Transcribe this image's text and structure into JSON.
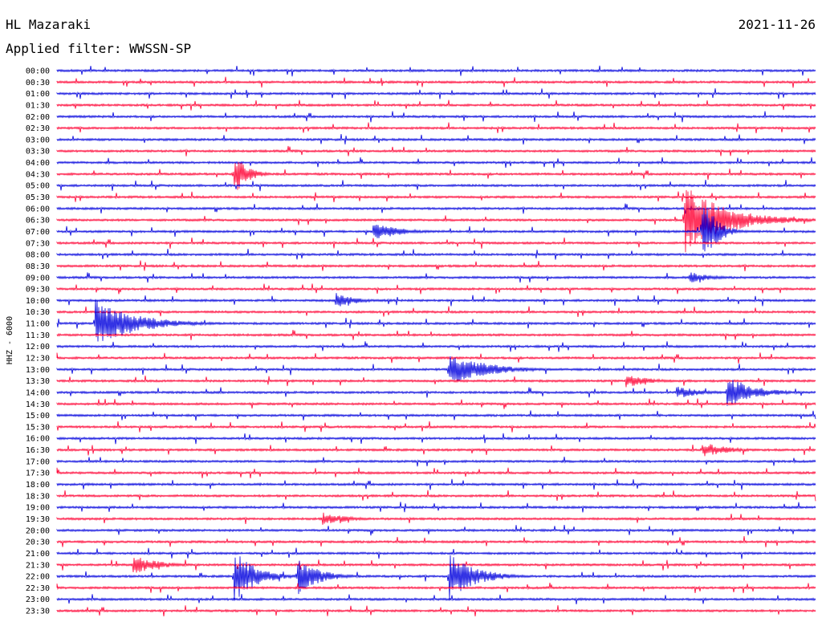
{
  "header": {
    "station": "HL Mazaraki",
    "date": "2021-11-26",
    "filter_label": "Applied filter: WWSSN-SP"
  },
  "chart_data": {
    "type": "helicorder",
    "channel_label": "HHZ - 6000",
    "colors": {
      "even_rows": "#0000dd",
      "odd_rows": "#ff0033"
    },
    "row_times": [
      "00:00",
      "00:30",
      "01:00",
      "01:30",
      "02:00",
      "02:30",
      "03:00",
      "03:30",
      "04:00",
      "04:30",
      "05:00",
      "05:30",
      "06:00",
      "06:30",
      "07:00",
      "07:30",
      "08:00",
      "08:30",
      "09:00",
      "09:30",
      "10:00",
      "10:30",
      "11:00",
      "11:30",
      "12:00",
      "12:30",
      "13:00",
      "13:30",
      "14:00",
      "14:30",
      "15:00",
      "15:30",
      "16:00",
      "16:30",
      "17:00",
      "17:30",
      "18:00",
      "18:30",
      "19:00",
      "19:30",
      "20:00",
      "20:30",
      "21:00",
      "21:30",
      "22:00",
      "22:30",
      "23:00",
      "23:30"
    ],
    "row_window_minutes": 30,
    "events": [
      {
        "row": 22,
        "minute": 1.5,
        "amp": 32,
        "dur": 1.5
      },
      {
        "row": 26,
        "minute": 15.5,
        "amp": 20,
        "dur": 1.5
      },
      {
        "row": 27,
        "minute": 22.5,
        "amp": 8,
        "dur": 1.0
      },
      {
        "row": 28,
        "minute": 26.5,
        "amp": 22,
        "dur": 1.0
      },
      {
        "row": 28,
        "minute": 24.5,
        "amp": 8,
        "dur": 1.0
      },
      {
        "row": 13,
        "minute": 24.8,
        "amp": 45,
        "dur": 1.6
      },
      {
        "row": 14,
        "minute": 25.5,
        "amp": 50,
        "dur": 0.5
      },
      {
        "row": 14,
        "minute": 12.5,
        "amp": 12,
        "dur": 1.0
      },
      {
        "row": 20,
        "minute": 11.0,
        "amp": 10,
        "dur": 0.8
      },
      {
        "row": 9,
        "minute": 7.0,
        "amp": 28,
        "dur": 0.5
      },
      {
        "row": 18,
        "minute": 25.0,
        "amp": 8,
        "dur": 0.8
      },
      {
        "row": 39,
        "minute": 10.5,
        "amp": 8,
        "dur": 1.0
      },
      {
        "row": 44,
        "minute": 7.0,
        "amp": 35,
        "dur": 0.8
      },
      {
        "row": 44,
        "minute": 9.5,
        "amp": 25,
        "dur": 0.8
      },
      {
        "row": 43,
        "minute": 3.0,
        "amp": 12,
        "dur": 1.0
      },
      {
        "row": 44,
        "minute": 15.5,
        "amp": 30,
        "dur": 1.0
      },
      {
        "row": 33,
        "minute": 25.5,
        "amp": 10,
        "dur": 1.0
      }
    ]
  }
}
